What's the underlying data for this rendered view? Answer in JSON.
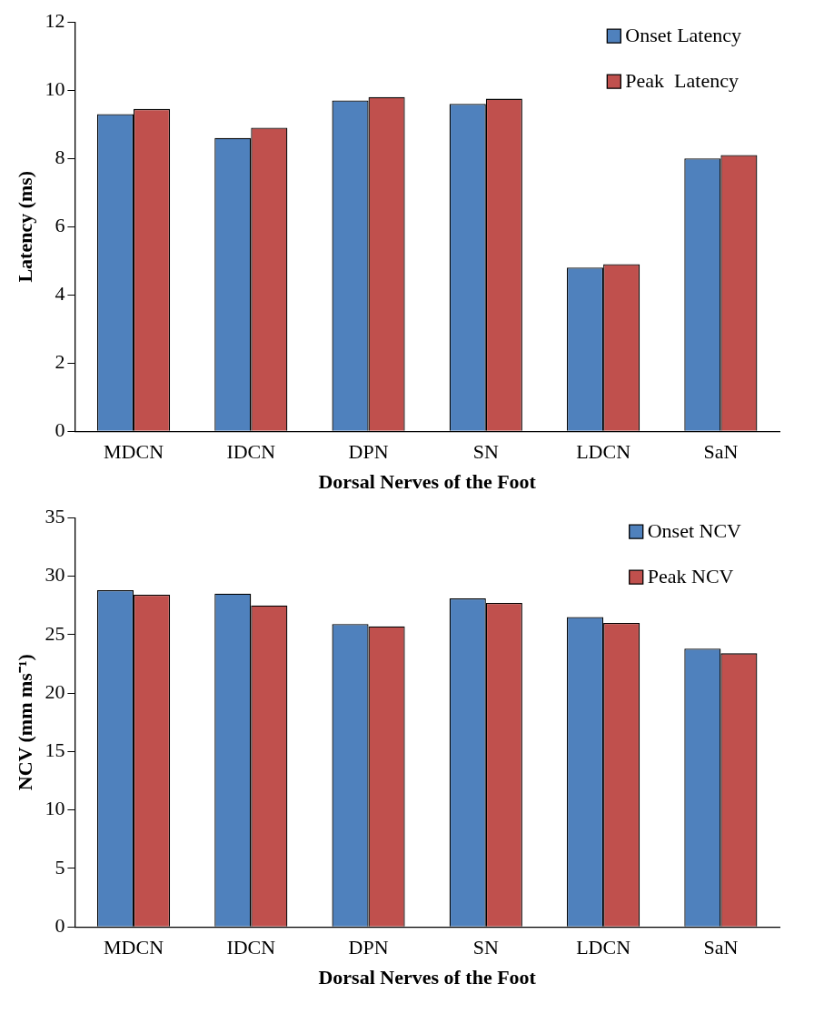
{
  "chart_data": [
    {
      "type": "bar",
      "xlabel": "Dorsal Nerves of the Foot",
      "ylabel": "Latency (ms)",
      "categories": [
        "MDCN",
        "IDCN",
        "DPN",
        "SN",
        "LDCN",
        "SaN"
      ],
      "series": [
        {
          "name": "Onset Latency",
          "color": "#4f81bd",
          "values": [
            9.3,
            8.6,
            9.7,
            9.6,
            4.8,
            8.0
          ]
        },
        {
          "name": "Peak  Latency",
          "color": "#c0504d",
          "values": [
            9.45,
            8.9,
            9.8,
            9.75,
            4.9,
            8.1
          ]
        }
      ],
      "ylim": [
        0,
        12
      ],
      "yticks": [
        0,
        2,
        4,
        6,
        8,
        10,
        12
      ],
      "grid": false,
      "legend": "top right"
    },
    {
      "type": "bar",
      "xlabel": "Dorsal Nerves of the Foot",
      "ylabel": "NCV (mm ms⁻¹)",
      "categories": [
        "MDCN",
        "IDCN",
        "DPN",
        "SN",
        "LDCN",
        "SaN"
      ],
      "series": [
        {
          "name": "Onset NCV",
          "color": "#4f81bd",
          "values": [
            28.8,
            28.5,
            25.9,
            28.1,
            26.5,
            23.8
          ]
        },
        {
          "name": "Peak NCV",
          "color": "#c0504d",
          "values": [
            28.4,
            27.5,
            25.7,
            27.7,
            26.0,
            23.4
          ]
        }
      ],
      "ylim": [
        0,
        35
      ],
      "yticks": [
        0,
        5,
        10,
        15,
        20,
        25,
        30,
        35
      ],
      "grid": false,
      "legend": "top right"
    }
  ]
}
